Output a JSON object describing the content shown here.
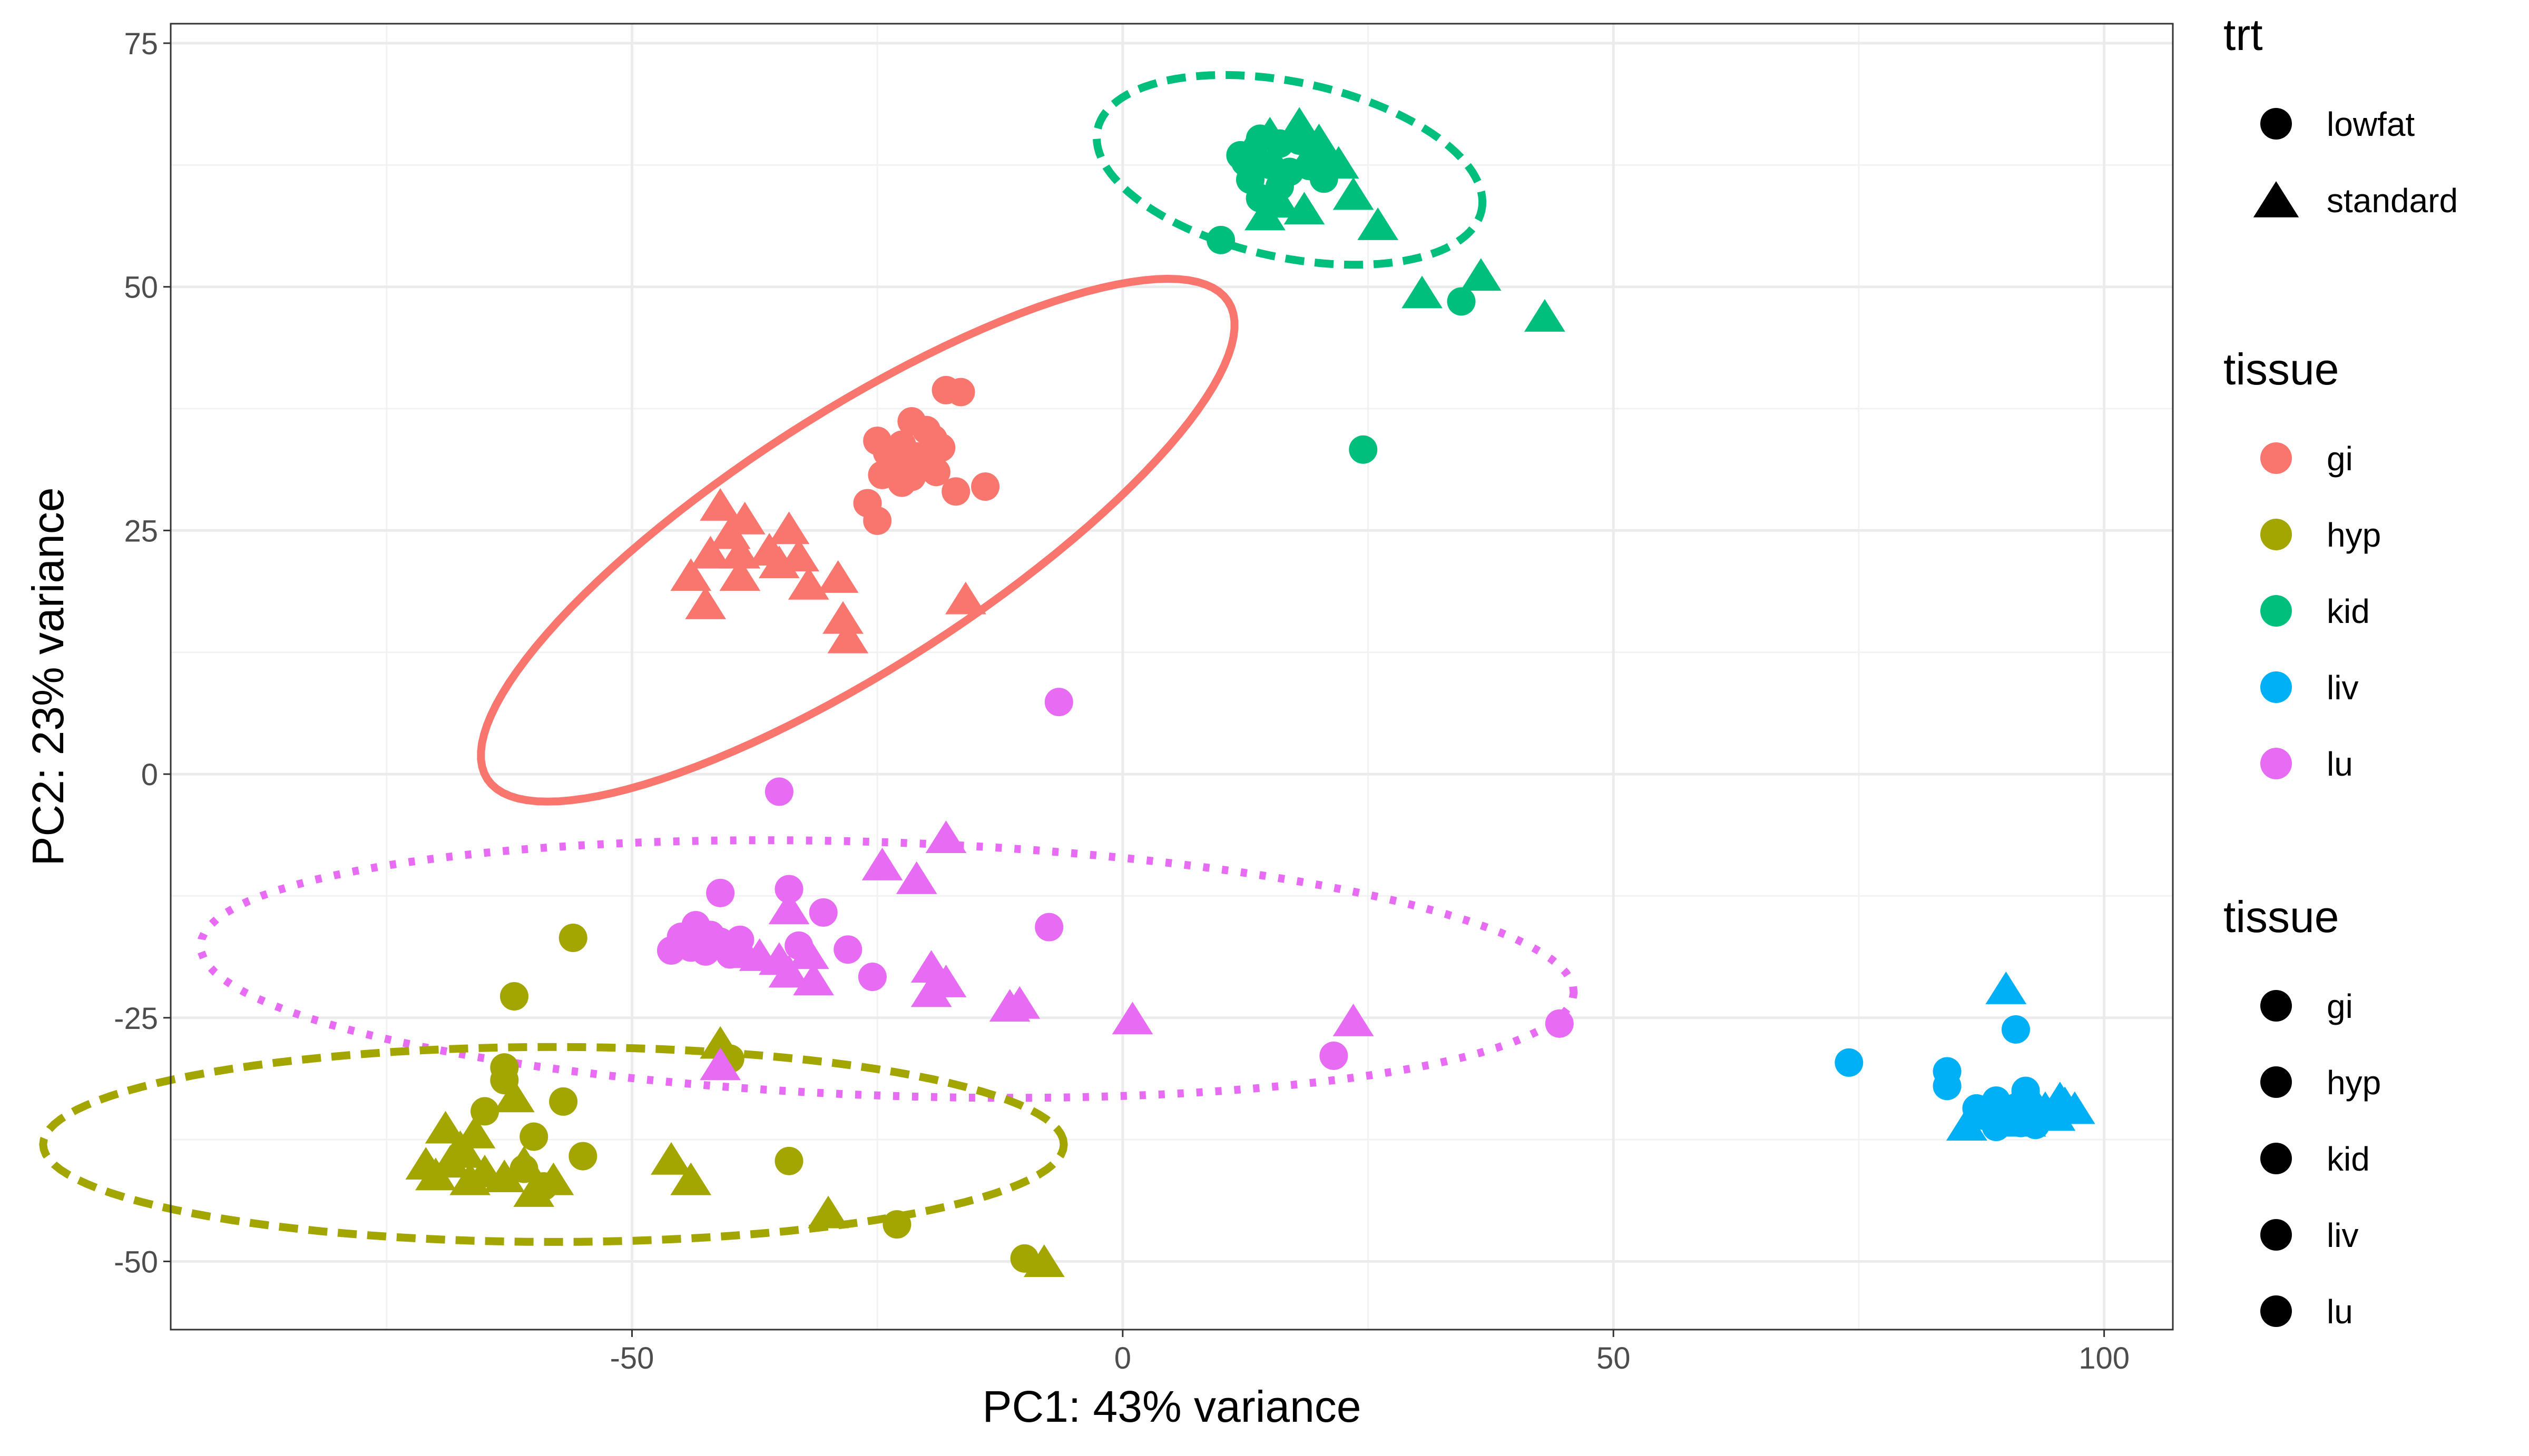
{
  "chart_data": {
    "type": "scatter",
    "xlabel": "PC1: 43% variance",
    "ylabel": "PC2: 23% variance",
    "xlim": [
      -97,
      107
    ],
    "ylim": [
      -57,
      77
    ],
    "x_ticks": [
      -50,
      0,
      50,
      100
    ],
    "y_ticks": [
      -50,
      -25,
      0,
      25,
      50,
      75
    ],
    "x_tick_labels": [
      "-50",
      "0",
      "50",
      "100"
    ],
    "y_tick_labels": [
      "-50",
      "-25",
      "0",
      "25",
      "50",
      "75"
    ],
    "grid": true,
    "legend_position": "right",
    "colors": {
      "gi": "#F8766D",
      "hyp": "#A3A500",
      "kid": "#00BF7D",
      "liv": "#00B0F6",
      "lu": "#E76BF3"
    },
    "legends": [
      {
        "title": "trt",
        "items": [
          {
            "label": "lowfat",
            "shape": "circle"
          },
          {
            "label": "standard",
            "shape": "triangle"
          }
        ]
      },
      {
        "title": "tissue",
        "items": [
          {
            "label": "gi",
            "shape": "circle",
            "color": "#F8766D"
          },
          {
            "label": "hyp",
            "shape": "circle",
            "color": "#A3A500"
          },
          {
            "label": "kid",
            "shape": "circle",
            "color": "#00BF7D"
          },
          {
            "label": "liv",
            "shape": "circle",
            "color": "#00B0F6"
          },
          {
            "label": "lu",
            "shape": "circle",
            "color": "#E76BF3"
          }
        ]
      },
      {
        "title": "tissue",
        "items": [
          {
            "label": "gi",
            "shape": "circle",
            "color": "#000000"
          },
          {
            "label": "hyp",
            "shape": "circle",
            "color": "#000000"
          },
          {
            "label": "kid",
            "shape": "circle",
            "color": "#000000"
          },
          {
            "label": "liv",
            "shape": "circle",
            "color": "#000000"
          },
          {
            "label": "lu",
            "shape": "circle",
            "color": "#000000"
          }
        ]
      }
    ],
    "ellipses": [
      {
        "tissue": "gi",
        "cx": -27,
        "cy": 24,
        "rx": 45,
        "ry": 13,
        "angle_deg": 33,
        "linetype": "solid"
      },
      {
        "tissue": "kid",
        "cx": 17,
        "cy": 62,
        "rx": 20,
        "ry": 9,
        "angle_deg": -12,
        "linetype": "dashed"
      },
      {
        "tissue": "lu",
        "cx": -24,
        "cy": -20,
        "rx": 70,
        "ry": 13,
        "angle_deg": -2,
        "linetype": "dotted"
      },
      {
        "tissue": "hyp",
        "cx": -58,
        "cy": -38,
        "rx": 52,
        "ry": 10,
        "angle_deg": 0,
        "linetype": "dashed"
      },
      {
        "tissue": "liv",
        "cx": 91,
        "cy": -35,
        "rx": 5,
        "ry": 1.5,
        "angle_deg": 0,
        "linetype": "solid"
      }
    ],
    "series": [
      {
        "tissue": "gi",
        "trt": "lowfat",
        "points": [
          [
            -18,
            39.4
          ],
          [
            -16.5,
            39.2
          ],
          [
            -21.5,
            36.2
          ],
          [
            -20,
            35.3
          ],
          [
            -19.3,
            34.4
          ],
          [
            -22.5,
            33.8
          ],
          [
            -25,
            34.2
          ],
          [
            -24,
            33
          ],
          [
            -23,
            32.2
          ],
          [
            -21,
            32.6
          ],
          [
            -20,
            31.9
          ],
          [
            -19,
            31
          ],
          [
            -21.5,
            30.5
          ],
          [
            -22.5,
            29.9
          ],
          [
            -24.5,
            30.7
          ],
          [
            -26,
            27.8
          ],
          [
            -25,
            26
          ],
          [
            -17,
            29
          ],
          [
            -14,
            29.5
          ],
          [
            -23.5,
            32.8
          ],
          [
            -18.5,
            33.5
          ]
        ]
      },
      {
        "tissue": "gi",
        "trt": "standard",
        "points": [
          [
            -41,
            27.4
          ],
          [
            -38.5,
            26
          ],
          [
            -40,
            24.5
          ],
          [
            -34,
            25
          ],
          [
            -42,
            22.5
          ],
          [
            -39,
            22.5
          ],
          [
            -35,
            21.5
          ],
          [
            -33,
            22.2
          ],
          [
            -44,
            20.2
          ],
          [
            -39,
            20.2
          ],
          [
            -32,
            19.3
          ],
          [
            -29,
            20
          ],
          [
            -42.5,
            17.3
          ],
          [
            -28.5,
            15.8
          ],
          [
            -28,
            13.8
          ],
          [
            -16,
            17.8
          ],
          [
            -36,
            22.8
          ]
        ]
      },
      {
        "tissue": "hyp",
        "trt": "lowfat",
        "points": [
          [
            -56,
            -16.8
          ],
          [
            -62,
            -22.8
          ],
          [
            -63,
            -30.1
          ],
          [
            -63,
            -31.4
          ],
          [
            -57,
            -33.6
          ],
          [
            -65,
            -34.6
          ],
          [
            -60,
            -37.2
          ],
          [
            -55,
            -39.2
          ],
          [
            -59,
            -42.3
          ],
          [
            -34,
            -39.7
          ],
          [
            -23,
            -46.2
          ],
          [
            -10,
            -49.7
          ],
          [
            -40,
            -29.2
          ],
          [
            -61,
            -40.5
          ]
        ]
      },
      {
        "tissue": "hyp",
        "trt": "standard",
        "points": [
          [
            -62,
            -33.3
          ],
          [
            -69,
            -36.5
          ],
          [
            -66,
            -37
          ],
          [
            -67,
            -39
          ],
          [
            -68.5,
            -40
          ],
          [
            -71,
            -40.2
          ],
          [
            -65,
            -41
          ],
          [
            -63,
            -41.5
          ],
          [
            -70,
            -41.3
          ],
          [
            -66.5,
            -41.8
          ],
          [
            -61,
            -40.1
          ],
          [
            -58,
            -41.8
          ],
          [
            -46,
            -39.7
          ],
          [
            -44,
            -41.8
          ],
          [
            -41,
            -27.8
          ],
          [
            -30,
            -45.2
          ],
          [
            -8,
            -50.2
          ],
          [
            -60,
            -43
          ],
          [
            -67.5,
            -38.5
          ]
        ]
      },
      {
        "tissue": "kid",
        "trt": "lowfat",
        "points": [
          [
            14,
            65.2
          ],
          [
            16,
            64.7
          ],
          [
            18,
            65
          ],
          [
            12,
            63.5
          ],
          [
            15,
            62.5
          ],
          [
            17,
            61.8
          ],
          [
            13,
            61
          ],
          [
            19,
            62.4
          ],
          [
            16,
            60.3
          ],
          [
            20.5,
            61.1
          ],
          [
            14,
            59.1
          ],
          [
            10,
            54.8
          ],
          [
            34.5,
            48.5
          ],
          [
            24.5,
            33.3
          ],
          [
            12.5,
            62.8
          ]
        ]
      },
      {
        "tissue": "kid",
        "trt": "standard",
        "points": [
          [
            18,
            66.5
          ],
          [
            15,
            65.5
          ],
          [
            13,
            64
          ],
          [
            20,
            64.8
          ],
          [
            22,
            62.5
          ],
          [
            16,
            58.5
          ],
          [
            18.5,
            57.8
          ],
          [
            14.5,
            57.2
          ],
          [
            23.5,
            59.3
          ],
          [
            26,
            56.2
          ],
          [
            30.5,
            49.2
          ],
          [
            36.5,
            51
          ],
          [
            43,
            46.8
          ],
          [
            20.5,
            63.3
          ]
        ]
      },
      {
        "tissue": "liv",
        "trt": "lowfat",
        "points": [
          [
            74,
            -29.6
          ],
          [
            84,
            -30.5
          ],
          [
            91,
            -26.2
          ],
          [
            84,
            -32
          ],
          [
            89,
            -33.5
          ],
          [
            91,
            -34.2
          ],
          [
            92,
            -32.5
          ],
          [
            90,
            -35.5
          ],
          [
            93,
            -36
          ],
          [
            88,
            -35
          ],
          [
            89,
            -36.2
          ],
          [
            91.5,
            -35.8
          ],
          [
            87,
            -34.3
          ]
        ]
      },
      {
        "tissue": "liv",
        "trt": "standard",
        "points": [
          [
            90,
            -22.2
          ],
          [
            86,
            -36.2
          ],
          [
            94,
            -34.5
          ],
          [
            96,
            -34
          ],
          [
            97,
            -34.5
          ],
          [
            95,
            -35.2
          ],
          [
            93,
            -34
          ],
          [
            92,
            -35.8
          ],
          [
            95.5,
            -33.5
          ]
        ]
      },
      {
        "tissue": "lu",
        "trt": "lowfat",
        "points": [
          [
            -6.5,
            7.4
          ],
          [
            -35,
            -1.8
          ],
          [
            -41,
            -12.2
          ],
          [
            -34,
            -11.8
          ],
          [
            -30.5,
            -14.2
          ],
          [
            -43.5,
            -15.5
          ],
          [
            -42,
            -16.5
          ],
          [
            -45,
            -16.7
          ],
          [
            -41,
            -17.2
          ],
          [
            -39,
            -17
          ],
          [
            -46,
            -18.1
          ],
          [
            -44,
            -17.8
          ],
          [
            -40,
            -18.5
          ],
          [
            -33,
            -17.6
          ],
          [
            -28,
            -18
          ],
          [
            -25.5,
            -20.8
          ],
          [
            -7.5,
            -15.7
          ],
          [
            21.5,
            -28.9
          ],
          [
            44.5,
            -25.6
          ],
          [
            -42.5,
            -18.2
          ]
        ]
      },
      {
        "tissue": "lu",
        "trt": "standard",
        "points": [
          [
            -18,
            -6.7
          ],
          [
            -24.5,
            -9.5
          ],
          [
            -21,
            -10.9
          ],
          [
            -34,
            -14
          ],
          [
            -38.5,
            -18.5
          ],
          [
            -35,
            -19.2
          ],
          [
            -32,
            -18.6
          ],
          [
            -34,
            -20.5
          ],
          [
            -31.5,
            -21.3
          ],
          [
            -19.5,
            -20
          ],
          [
            -18,
            -21.5
          ],
          [
            -19.5,
            -22.5
          ],
          [
            -11.5,
            -24
          ],
          [
            -10.5,
            -23.7
          ],
          [
            1,
            -25.3
          ],
          [
            23.5,
            -25.5
          ],
          [
            -41,
            -30
          ],
          [
            -37,
            -18.8
          ]
        ]
      }
    ]
  }
}
